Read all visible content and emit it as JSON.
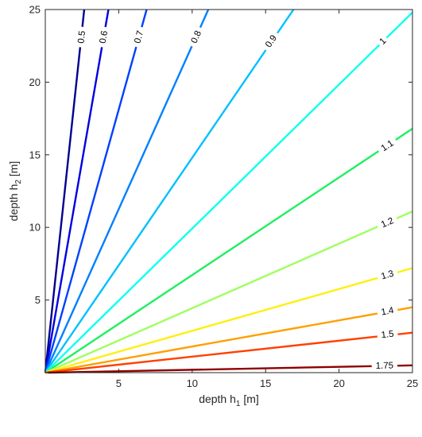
{
  "chart_data": {
    "type": "line",
    "title": "",
    "xlabel": {
      "prefix": "depth h",
      "sub": "1",
      "suffix": " [m]"
    },
    "ylabel": {
      "prefix": "depth h",
      "sub": "2",
      "suffix": " [m]"
    },
    "xlim": [
      0,
      25
    ],
    "ylim": [
      0,
      25
    ],
    "xticks": [
      5,
      10,
      15,
      20,
      25
    ],
    "yticks": [
      5,
      10,
      15,
      20,
      25
    ],
    "grid": false,
    "legend": "none",
    "series": [
      {
        "name": "0.5",
        "color": "#00008f",
        "x": [
          0,
          2.65
        ],
        "y": [
          0,
          25
        ],
        "label_at": [
          2.5,
          23.1
        ]
      },
      {
        "name": "0.6",
        "color": "#0000e0",
        "x": [
          0,
          4.3
        ],
        "y": [
          0,
          25
        ],
        "label_at": [
          4.0,
          23.1
        ]
      },
      {
        "name": "0.7",
        "color": "#0040ff",
        "x": [
          0,
          6.9
        ],
        "y": [
          0,
          25
        ],
        "label_at": [
          6.4,
          23.1
        ]
      },
      {
        "name": "0.8",
        "color": "#0080ff",
        "x": [
          0,
          11.1
        ],
        "y": [
          0,
          25
        ],
        "label_at": [
          10.3,
          23.1
        ]
      },
      {
        "name": "0.9",
        "color": "#00c0ff",
        "x": [
          0,
          16.9
        ],
        "y": [
          0,
          25
        ],
        "label_at": [
          15.4,
          22.8
        ]
      },
      {
        "name": "1",
        "color": "#10ffef",
        "x": [
          0,
          25
        ],
        "y": [
          0,
          24.8
        ],
        "label_at": [
          23.0,
          22.8
        ]
      },
      {
        "name": "1.1",
        "color": "#20ef60",
        "x": [
          0,
          25
        ],
        "y": [
          0,
          16.8
        ],
        "label_at": [
          23.3,
          15.6
        ]
      },
      {
        "name": "1.2",
        "color": "#9fff60",
        "x": [
          0,
          25
        ],
        "y": [
          0,
          11.1
        ],
        "label_at": [
          23.3,
          10.3
        ]
      },
      {
        "name": "1.3",
        "color": "#ffef10",
        "x": [
          0,
          25
        ],
        "y": [
          0,
          7.2
        ],
        "label_at": [
          23.3,
          6.7
        ]
      },
      {
        "name": "1.4",
        "color": "#ff9f00",
        "x": [
          0,
          25
        ],
        "y": [
          0,
          4.5
        ],
        "label_at": [
          23.3,
          4.2
        ]
      },
      {
        "name": "1.5",
        "color": "#ff4000",
        "x": [
          0,
          25
        ],
        "y": [
          0,
          2.75
        ],
        "label_at": [
          23.3,
          2.6
        ]
      },
      {
        "name": "1.75",
        "color": "#8f0000",
        "x": [
          0.2,
          25
        ],
        "y": [
          0,
          0.5
        ],
        "label_at": [
          23.1,
          0.45
        ]
      }
    ]
  }
}
